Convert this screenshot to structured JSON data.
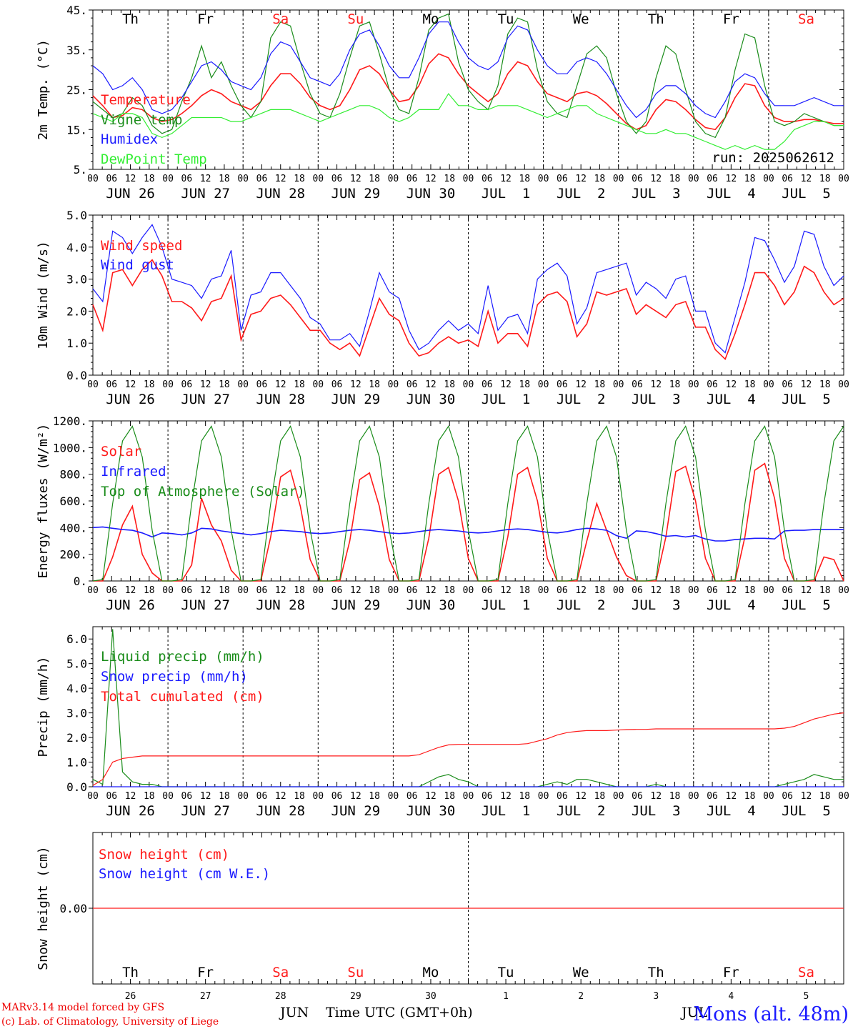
{
  "colors": {
    "red": "#ff1a1a",
    "green": "#1a8c1a",
    "blue": "#1a1aff",
    "lightgreen": "#33ee33",
    "weekend": "#ff1a1a",
    "text": "#000000"
  },
  "days": [
    "Th",
    "Fr",
    "Sa",
    "Su",
    "Mo",
    "Tu",
    "We",
    "Th",
    "Fr",
    "Sa"
  ],
  "weekend_days": [
    2,
    3,
    9
  ],
  "dates": [
    "JUN 26",
    "JUN 27",
    "JUN 28",
    "JUN 29",
    "JUN 30",
    "JUL  1",
    "JUL  2",
    "JUL  3",
    "JUL  4",
    "JUL  5"
  ],
  "hour_ticks": [
    "00",
    "06",
    "12",
    "18"
  ],
  "last_hour_tick": "00",
  "day_numbers": [
    "26",
    "27",
    "28",
    "29",
    "30",
    "1",
    "2",
    "3",
    "4",
    "5"
  ],
  "month_label_1": "JUN",
  "month_label_2": "JUL",
  "xaxis_title": "Time UTC (GMT+0h)",
  "footer_line1": "MARv3.14 model forced by GFS",
  "footer_line2": "(c) Lab. of Climatology, University of Liege",
  "site_label": "Mons (alt. 48m)",
  "run_label": "run: 2025062612",
  "chart_data": [
    {
      "type": "line",
      "ylabel": "2m Temp. (°C)",
      "ylim": [
        5,
        45
      ],
      "yticks": [
        "5.",
        "15.",
        "25.",
        "35.",
        "45."
      ],
      "legend": [
        "Temperature",
        "Vigne temp",
        "Humidex",
        "DewPoint Temp"
      ],
      "x_unit": "hours from JUN 26 00 UTC, 3-hourly",
      "series": [
        {
          "name": "Temperature",
          "color": "red",
          "values": [
            23.5,
            21,
            18,
            18.5,
            20.5,
            20,
            18,
            17,
            17.5,
            19,
            21,
            23.5,
            25,
            24,
            22,
            21,
            20,
            22,
            26,
            29,
            29,
            26.5,
            23,
            21,
            20,
            21,
            25,
            30,
            31,
            29,
            25,
            22,
            22.5,
            26,
            31.5,
            34,
            33,
            29,
            26,
            24,
            22,
            24,
            29,
            32,
            31,
            27,
            24,
            23,
            22,
            24,
            24.5,
            23.5,
            21.5,
            19,
            16.5,
            15,
            16,
            20,
            22.5,
            22,
            20,
            17.5,
            15.5,
            15,
            18,
            23,
            26.5,
            26,
            21,
            18,
            17,
            17,
            17.5,
            17.5,
            17,
            16.5,
            16.5
          ]
        },
        {
          "name": "Vigne temp",
          "color": "green",
          "values": [
            22,
            20,
            18,
            19,
            23,
            21,
            16,
            14,
            15,
            22,
            28,
            36,
            28,
            32,
            26,
            21,
            18,
            22,
            38,
            42,
            41,
            32,
            24,
            19,
            18,
            24,
            33,
            41,
            42,
            34,
            25,
            20,
            19,
            28,
            40,
            43,
            44,
            32,
            25,
            22,
            20,
            26,
            39,
            43,
            42,
            30,
            22,
            19,
            18,
            26,
            34,
            36,
            33,
            24,
            17,
            14,
            17,
            28,
            36,
            34,
            25,
            17,
            14,
            13,
            18,
            30,
            39,
            38,
            26,
            17,
            16,
            17,
            19,
            18,
            17,
            16,
            16
          ]
        },
        {
          "name": "Humidex",
          "color": "blue",
          "values": [
            31,
            29,
            25,
            26,
            28,
            25,
            20,
            19,
            20,
            23,
            27,
            31,
            32,
            30,
            27,
            26,
            25,
            28,
            34,
            37,
            36,
            32,
            28,
            27,
            26,
            29,
            35,
            39,
            40,
            36,
            31,
            28,
            28,
            33,
            39,
            42,
            42,
            37,
            33,
            31,
            30,
            32,
            38,
            41,
            40,
            35,
            31,
            29,
            29,
            32,
            33,
            32,
            29,
            25,
            21,
            18,
            20,
            24,
            26,
            26,
            24,
            21,
            19,
            18,
            22,
            27,
            29,
            28,
            24,
            21,
            21,
            21,
            22,
            23,
            22,
            21,
            21
          ]
        },
        {
          "name": "DewPoint Temp",
          "color": "lightgreen",
          "values": [
            19,
            18,
            17,
            19,
            19,
            18,
            14,
            13,
            14,
            16,
            18,
            18,
            18,
            18,
            17,
            17,
            18,
            19,
            20,
            20,
            20,
            19,
            18,
            17,
            18,
            19,
            20,
            21,
            21,
            20,
            18,
            17,
            18,
            20,
            20,
            20,
            24,
            21,
            21,
            20,
            20,
            21,
            21,
            21,
            20,
            19,
            18,
            19,
            20,
            21,
            21,
            19,
            18,
            17,
            16,
            15,
            14,
            14,
            15,
            14,
            14,
            13,
            12,
            11,
            10,
            11,
            10,
            11,
            10,
            10,
            12,
            15,
            16,
            17,
            17,
            16,
            16
          ]
        }
      ]
    },
    {
      "type": "line",
      "ylabel": "10m Wind (m/s)",
      "ylim": [
        0,
        5
      ],
      "yticks": [
        "0.0",
        "1.0",
        "2.0",
        "3.0",
        "4.0",
        "5.0"
      ],
      "legend": [
        "Wind speed",
        "Wind gust"
      ],
      "x_unit": "hours from JUN 26 00 UTC, 3-hourly",
      "series": [
        {
          "name": "Wind speed",
          "color": "red",
          "values": [
            2.2,
            1.4,
            3.2,
            3.3,
            2.8,
            3.3,
            3.6,
            3.1,
            2.3,
            2.3,
            2.1,
            1.7,
            2.3,
            2.4,
            3.1,
            1.1,
            1.9,
            2.0,
            2.4,
            2.5,
            2.2,
            1.8,
            1.4,
            1.4,
            1.0,
            0.8,
            1.0,
            0.6,
            1.5,
            2.4,
            1.9,
            1.7,
            1.0,
            0.6,
            0.7,
            1.0,
            1.2,
            1.0,
            1.1,
            0.9,
            2.0,
            1.0,
            1.3,
            1.3,
            0.9,
            2.2,
            2.5,
            2.6,
            2.3,
            1.2,
            1.6,
            2.6,
            2.5,
            2.6,
            2.7,
            1.9,
            2.2,
            2.0,
            1.8,
            2.2,
            2.3,
            1.5,
            1.5,
            0.8,
            0.5,
            1.3,
            2.2,
            3.2,
            3.2,
            2.8,
            2.2,
            2.6,
            3.4,
            3.2,
            2.6,
            2.2,
            2.4
          ]
        },
        {
          "name": "Wind gust",
          "color": "blue",
          "values": [
            2.7,
            2.3,
            4.5,
            4.3,
            3.8,
            4.3,
            4.7,
            4.0,
            3.0,
            2.9,
            2.8,
            2.4,
            3.0,
            3.1,
            3.9,
            1.4,
            2.5,
            2.6,
            3.2,
            3.2,
            2.8,
            2.4,
            1.8,
            1.6,
            1.1,
            1.1,
            1.3,
            0.9,
            2.0,
            3.2,
            2.6,
            2.4,
            1.4,
            0.8,
            1.0,
            1.4,
            1.7,
            1.4,
            1.6,
            1.3,
            2.8,
            1.4,
            1.8,
            1.9,
            1.3,
            3.0,
            3.3,
            3.5,
            3.1,
            1.6,
            2.1,
            3.2,
            3.3,
            3.4,
            3.5,
            2.5,
            2.9,
            2.7,
            2.4,
            3.0,
            3.1,
            2.0,
            2.0,
            1.0,
            0.7,
            1.8,
            2.9,
            4.3,
            4.2,
            3.6,
            2.9,
            3.4,
            4.5,
            4.4,
            3.4,
            2.8,
            3.1
          ]
        }
      ]
    },
    {
      "type": "line",
      "ylabel": "Energy fluxes (W/m²)",
      "ylim": [
        0,
        1200
      ],
      "yticks": [
        "0.",
        "200.",
        "400.",
        "600.",
        "800.",
        "1000.",
        "1200."
      ],
      "legend": [
        "Solar",
        "Infrared",
        "Top of Atmosphere (Solar)"
      ],
      "x_unit": "hours from JUN 26 00 UTC, 3-hourly",
      "series": [
        {
          "name": "Solar",
          "color": "red",
          "values": [
            0,
            0,
            180,
            420,
            560,
            200,
            60,
            0,
            0,
            0,
            120,
            620,
            420,
            300,
            80,
            0,
            0,
            0,
            330,
            780,
            830,
            560,
            160,
            0,
            0,
            0,
            300,
            760,
            810,
            560,
            160,
            0,
            0,
            0,
            320,
            800,
            850,
            600,
            170,
            0,
            0,
            0,
            330,
            800,
            850,
            600,
            170,
            0,
            0,
            0,
            300,
            580,
            380,
            180,
            40,
            0,
            0,
            0,
            330,
            820,
            860,
            600,
            170,
            0,
            0,
            0,
            330,
            830,
            880,
            620,
            170,
            0,
            0,
            0,
            180,
            160,
            0
          ]
        },
        {
          "name": "Infrared",
          "color": "blue",
          "values": [
            400,
            405,
            395,
            385,
            380,
            360,
            330,
            360,
            355,
            345,
            360,
            395,
            390,
            375,
            365,
            355,
            345,
            355,
            370,
            380,
            375,
            370,
            360,
            355,
            360,
            370,
            380,
            385,
            380,
            370,
            360,
            355,
            360,
            370,
            380,
            385,
            380,
            375,
            365,
            360,
            365,
            375,
            385,
            390,
            385,
            375,
            365,
            360,
            370,
            385,
            395,
            390,
            380,
            340,
            320,
            375,
            370,
            355,
            335,
            340,
            330,
            340,
            315,
            300,
            300,
            310,
            315,
            320,
            320,
            315,
            375,
            380,
            380,
            385,
            385,
            385,
            385
          ]
        },
        {
          "name": "Top of Atmosphere (Solar)",
          "color": "green",
          "values": [
            0,
            10,
            580,
            1050,
            1160,
            930,
            380,
            0,
            0,
            10,
            580,
            1050,
            1160,
            930,
            380,
            0,
            0,
            10,
            580,
            1050,
            1160,
            930,
            380,
            0,
            0,
            10,
            580,
            1050,
            1160,
            930,
            380,
            0,
            0,
            10,
            580,
            1050,
            1160,
            930,
            380,
            0,
            0,
            10,
            580,
            1050,
            1160,
            930,
            380,
            0,
            0,
            10,
            580,
            1050,
            1160,
            930,
            380,
            0,
            0,
            10,
            580,
            1050,
            1160,
            930,
            380,
            0,
            0,
            10,
            580,
            1050,
            1160,
            930,
            380,
            0,
            0,
            10,
            580,
            1050,
            1160
          ]
        }
      ]
    },
    {
      "type": "line",
      "ylabel": "Precip (mm/h)",
      "ylim": [
        0,
        6.5
      ],
      "yticks": [
        "0.0",
        "1.0",
        "2.0",
        "3.0",
        "4.0",
        "5.0",
        "6.0"
      ],
      "legend": [
        "Liquid precip (mm/h)",
        "Snow precip (mm/h)",
        "Total cumulated (cm)"
      ],
      "x_unit": "hours from JUN 26 00 UTC, 3-hourly",
      "series": [
        {
          "name": "Liquid precip (mm/h)",
          "color": "green",
          "values": [
            0.3,
            0.1,
            6.4,
            0.6,
            0.2,
            0.1,
            0.1,
            0,
            0,
            0,
            0,
            0,
            0,
            0,
            0,
            0,
            0,
            0,
            0,
            0,
            0,
            0,
            0,
            0,
            0,
            0,
            0,
            0,
            0,
            0,
            0,
            0,
            0,
            0,
            0.2,
            0.4,
            0.5,
            0.3,
            0.2,
            0,
            0,
            0,
            0,
            0,
            0,
            0,
            0.1,
            0.2,
            0.1,
            0.3,
            0.3,
            0.2,
            0.1,
            0,
            0,
            0,
            0,
            0.1,
            0,
            0,
            0,
            0,
            0,
            0,
            0,
            0,
            0,
            0,
            0,
            0,
            0.1,
            0.2,
            0.3,
            0.5,
            0.4,
            0.3,
            0.3
          ]
        },
        {
          "name": "Snow precip (mm/h)",
          "color": "blue",
          "values": [
            0,
            0,
            0,
            0,
            0,
            0,
            0,
            0,
            0,
            0,
            0,
            0,
            0,
            0,
            0,
            0,
            0,
            0,
            0,
            0,
            0,
            0,
            0,
            0,
            0,
            0,
            0,
            0,
            0,
            0,
            0,
            0,
            0,
            0,
            0,
            0,
            0,
            0,
            0,
            0,
            0,
            0,
            0,
            0,
            0,
            0,
            0,
            0,
            0,
            0,
            0,
            0,
            0,
            0,
            0,
            0,
            0,
            0,
            0,
            0,
            0,
            0,
            0,
            0,
            0,
            0,
            0,
            0,
            0,
            0,
            0,
            0,
            0,
            0,
            0,
            0,
            0
          ]
        },
        {
          "name": "Total cumulated (cm)",
          "color": "red",
          "values": [
            0.05,
            0.3,
            1.0,
            1.15,
            1.2,
            1.25,
            1.25,
            1.25,
            1.25,
            1.25,
            1.25,
            1.25,
            1.25,
            1.25,
            1.25,
            1.25,
            1.25,
            1.25,
            1.25,
            1.25,
            1.25,
            1.25,
            1.25,
            1.25,
            1.25,
            1.25,
            1.25,
            1.25,
            1.25,
            1.25,
            1.25,
            1.25,
            1.25,
            1.3,
            1.45,
            1.6,
            1.7,
            1.72,
            1.72,
            1.72,
            1.72,
            1.72,
            1.72,
            1.72,
            1.75,
            1.85,
            1.95,
            2.1,
            2.2,
            2.25,
            2.28,
            2.28,
            2.28,
            2.3,
            2.32,
            2.33,
            2.33,
            2.35,
            2.35,
            2.35,
            2.35,
            2.35,
            2.35,
            2.35,
            2.35,
            2.35,
            2.35,
            2.35,
            2.35,
            2.35,
            2.38,
            2.45,
            2.6,
            2.75,
            2.85,
            2.95,
            3.0
          ]
        }
      ]
    },
    {
      "type": "line",
      "ylabel": "Snow height (cm)",
      "ylim": [
        -1,
        1
      ],
      "yticks": [
        "0.00"
      ],
      "legend": [
        "Snow height (cm)",
        "Snow height (cm W.E.)"
      ],
      "x_unit": "hours from JUN 26 00 UTC, 3-hourly",
      "series": [
        {
          "name": "Snow height (cm)",
          "color": "red",
          "values": [
            0,
            0
          ]
        }
      ]
    }
  ]
}
